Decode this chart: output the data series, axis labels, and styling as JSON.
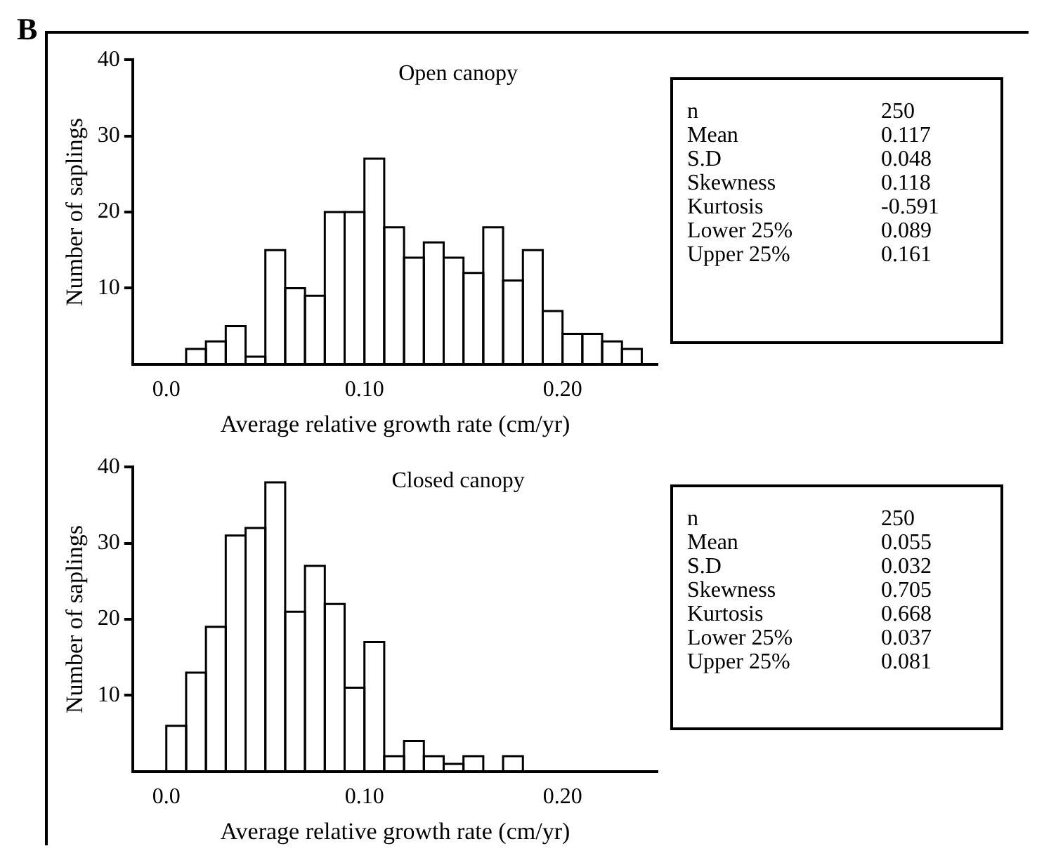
{
  "chart_data": [
    {
      "type": "histogram",
      "title": "Open canopy",
      "xlabel": "Average relative growth rate (cm/yr)",
      "ylabel": "Number of saplings",
      "annotations": [
        "B"
      ],
      "bins": [
        0.01,
        0.02,
        0.03,
        0.04,
        0.05,
        0.06,
        0.07,
        0.08,
        0.09,
        0.1,
        0.11,
        0.12,
        0.13,
        0.14,
        0.15,
        0.16,
        0.17,
        0.18,
        0.19,
        0.2,
        0.21,
        0.22,
        0.23,
        0.24
      ],
      "values": [
        2,
        3,
        5,
        1,
        15,
        10,
        9,
        20,
        20,
        27,
        18,
        14,
        16,
        14,
        12,
        18,
        11,
        15,
        7,
        4,
        4,
        3,
        2
      ],
      "color": "#000000",
      "xlim": [
        -0.017,
        0.248
      ],
      "xticks": [
        {
          "value": 0,
          "label": "0.0"
        },
        {
          "value": 0.1,
          "label": "0.10"
        },
        {
          "value": 0.2,
          "label": "0.20"
        }
      ],
      "ylim": [
        0,
        40
      ],
      "yticks": [
        10,
        20,
        30,
        40
      ],
      "grid": false
    },
    {
      "type": "other",
      "categories": [
        "n",
        "Mean",
        "S.D",
        "Skewness",
        "Kurtosis",
        "Lower 25%",
        "Upper 25%"
      ],
      "values": [
        250,
        0.117,
        0.048,
        0.118,
        -0.591,
        0.089,
        0.161
      ],
      "data_labels": true
    },
    {
      "type": "histogram",
      "title": "Closed canopy",
      "xlabel": "Average relative growth rate (cm/yr)",
      "ylabel": "Number of saplings",
      "bins": [
        0,
        0.01,
        0.02,
        0.03,
        0.04,
        0.05,
        0.06,
        0.07,
        0.08,
        0.09,
        0.1,
        0.11,
        0.12,
        0.13,
        0.14,
        0.15,
        0.16,
        0.17,
        0.18
      ],
      "values": [
        6,
        13,
        19,
        31,
        32,
        38,
        21,
        27,
        22,
        11,
        17,
        2,
        4,
        2,
        1,
        2,
        0,
        2
      ],
      "color": "#000000",
      "xlim": [
        -0.017,
        0.248
      ],
      "xticks": [
        {
          "value": 0,
          "label": "0.0"
        },
        {
          "value": 0.1,
          "label": "0.10"
        },
        {
          "value": 0.2,
          "label": "0.20"
        }
      ],
      "ylim": [
        0,
        40
      ],
      "yticks": [
        10,
        20,
        30,
        40
      ],
      "grid": false
    },
    {
      "type": "other",
      "categories": [
        "n",
        "Mean",
        "S.D",
        "Skewness",
        "Kurtosis",
        "Lower 25%",
        "Upper 25%"
      ],
      "values": [
        250,
        0.055,
        0.032,
        0.705,
        0.668,
        0.037,
        0.081
      ],
      "data_labels": true
    }
  ]
}
